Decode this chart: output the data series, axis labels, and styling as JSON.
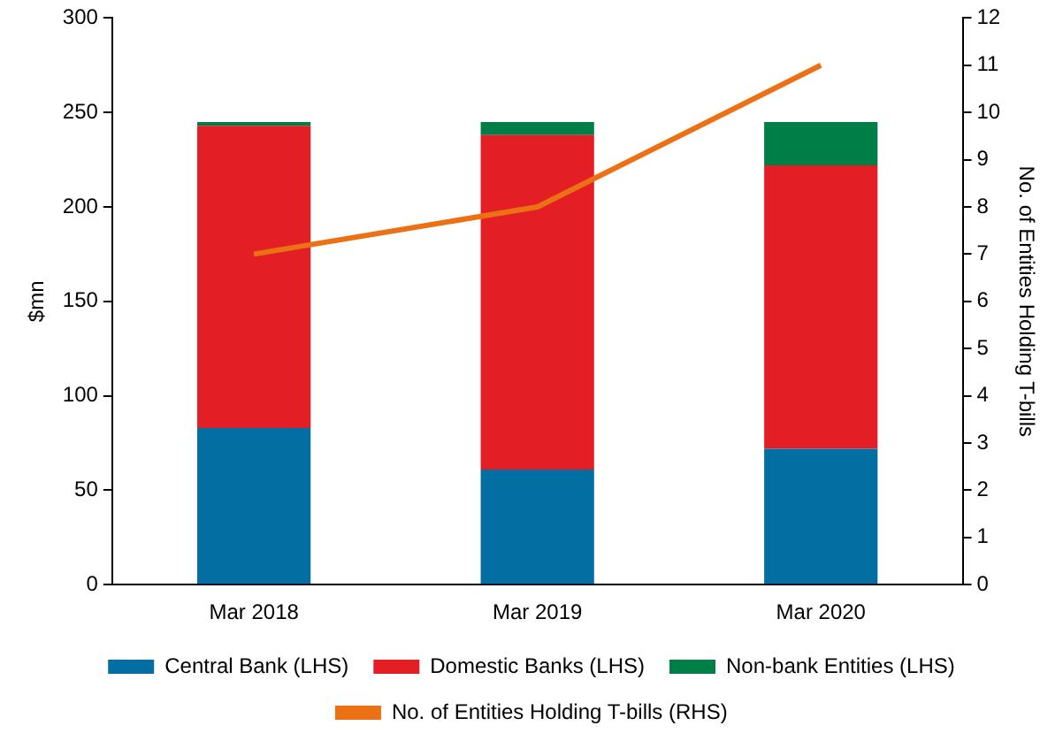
{
  "chart_data": {
    "type": "bar",
    "stacked": true,
    "categories": [
      "Mar 2018",
      "Mar 2019",
      "Mar 2020"
    ],
    "ylabel": "$mn",
    "y2label": "No. of Entities Holding T-bills",
    "ylim": [
      0,
      300
    ],
    "yticks": [
      0,
      50,
      100,
      150,
      200,
      250,
      300
    ],
    "y2lim": [
      0,
      12
    ],
    "y2ticks": [
      0,
      1,
      2,
      3,
      4,
      5,
      6,
      7,
      8,
      9,
      10,
      11,
      12
    ],
    "grid": false,
    "legend": "bottom",
    "marker": "none",
    "series": [
      {
        "name": "Central Bank (LHS)",
        "color": "#036ea2",
        "values": [
          83,
          61,
          72
        ]
      },
      {
        "name": "Domestic Banks (LHS)",
        "color": "#e31e24",
        "values": [
          160,
          177,
          150
        ]
      },
      {
        "name": "Non-bank Entities (LHS)",
        "color": "#007e48",
        "values": [
          2,
          7,
          23
        ]
      },
      {
        "name": "No. of Entities Holding T-bills (RHS)",
        "type": "line",
        "axis": "y2",
        "color": "#ec7014",
        "values": [
          7,
          8,
          11
        ]
      }
    ]
  }
}
